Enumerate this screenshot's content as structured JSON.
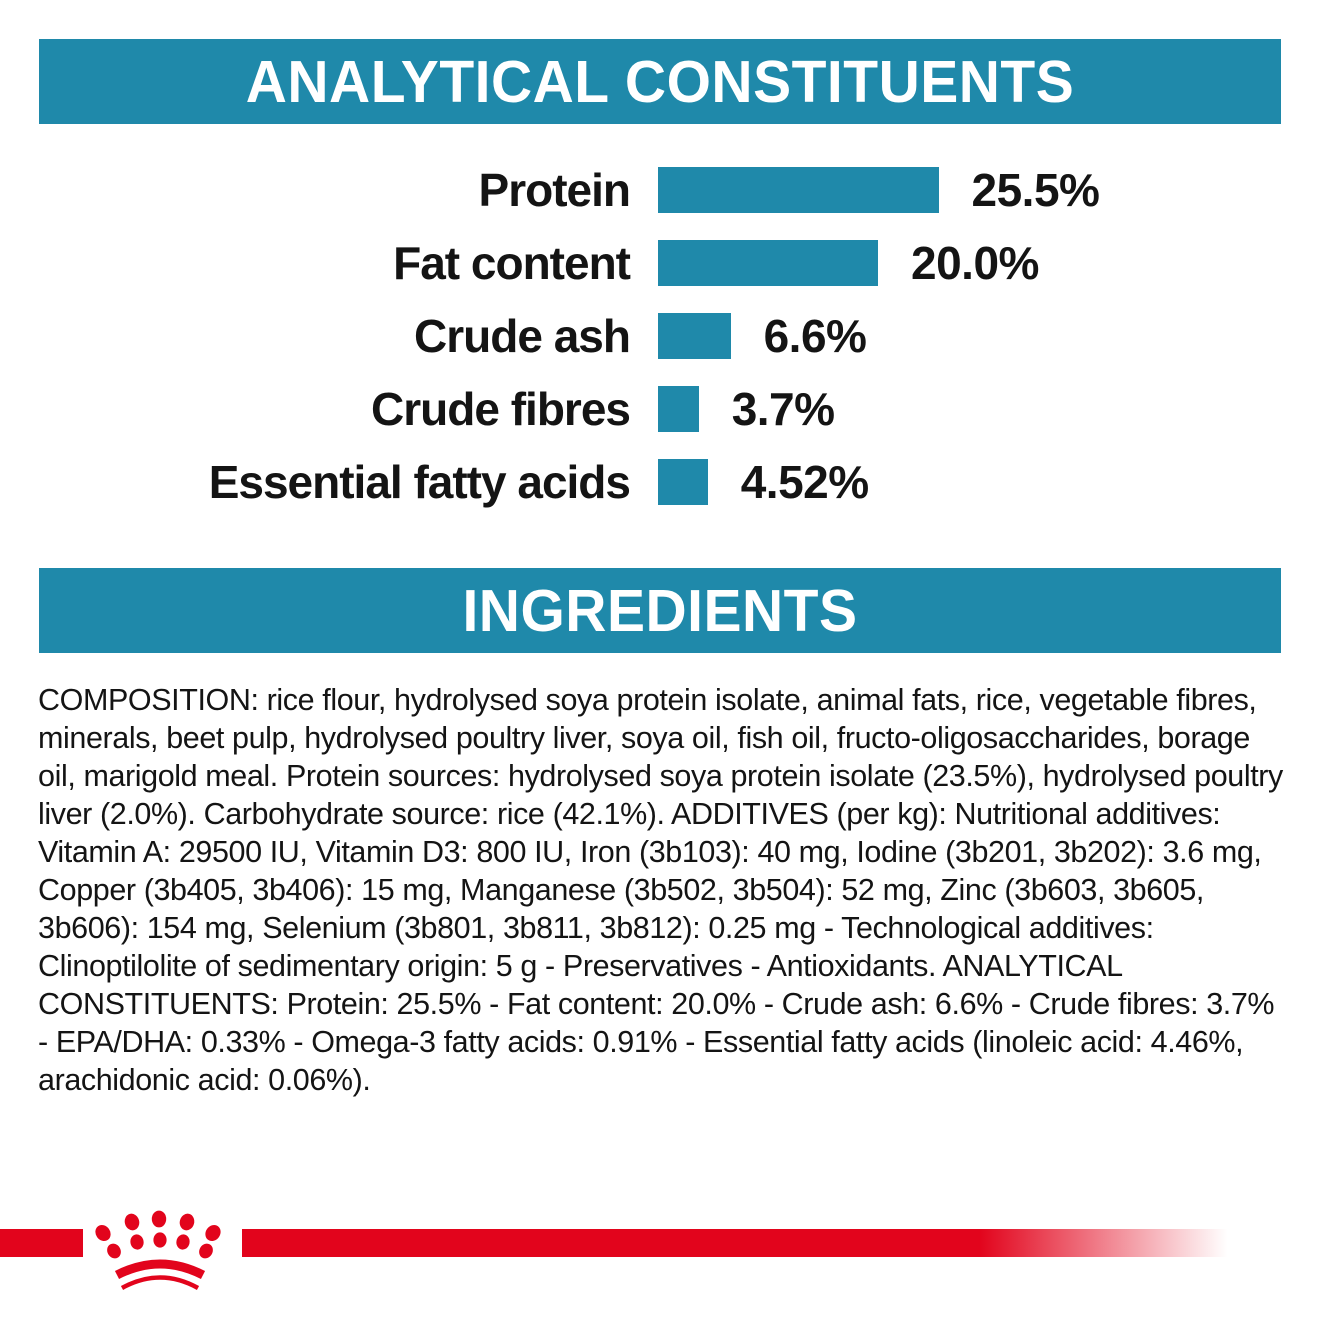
{
  "page": {
    "accent_teal": "#1f89aa",
    "brand_red": "#e2041c",
    "text_color": "#141414"
  },
  "sections": {
    "analytical": {
      "title": "ANALYTICAL CONSTITUENTS"
    },
    "ingredients": {
      "title": "INGREDIENTS",
      "composition": "COMPOSITION: rice flour, hydrolysed soya protein isolate, animal fats, rice, vegetable fibres, minerals, beet pulp, hydrolysed poultry liver, soya oil, fish oil, fructo-oligosaccharides, borage oil, marigold meal. Protein sources: hydrolysed soya protein isolate (23.5%), hydrolysed poultry liver (2.0%). Carbohydrate source: rice (42.1%). ADDITIVES (per kg): Nutritional additives: Vitamin A: 29500 IU, Vitamin D3: 800 IU, Iron (3b103): 40 mg, Iodine (3b201, 3b202): 3.6 mg, Copper (3b405, 3b406): 15 mg, Manganese (3b502, 3b504): 52 mg, Zinc (3b603, 3b605, 3b606): 154 mg, Selenium (3b801, 3b811, 3b812): 0.25 mg - Technological additives: Clinoptilolite of sedimentary origin: 5 g - Preservatives - Antioxidants. ANALYTICAL CONSTITUENTS: Protein: 25.5% - Fat content: 20.0% - Crude ash: 6.6% - Crude fibres: 3.7% - EPA/DHA: 0.33% - Omega-3 fatty acids: 0.91% - Essential fatty acids (linoleic acid: 4.46%, arachidonic acid: 0.06%)."
    }
  },
  "chart_data": {
    "type": "bar",
    "orientation": "horizontal",
    "title": "ANALYTICAL CONSTITUENTS",
    "categories": [
      "Protein",
      "Fat content",
      "Crude ash",
      "Crude fibres",
      "Essential fatty acids"
    ],
    "values": [
      25.5,
      20.0,
      6.6,
      3.7,
      4.52
    ],
    "value_labels": [
      "25.5%",
      "20.0%",
      "6.6%",
      "3.7%",
      "4.52%"
    ],
    "unit": "%",
    "xlim": [
      0,
      26
    ],
    "grid": false,
    "legend": false,
    "bar_color": "#1f89aa"
  },
  "footer": {
    "logo": "royal-canin-crown-logo"
  }
}
